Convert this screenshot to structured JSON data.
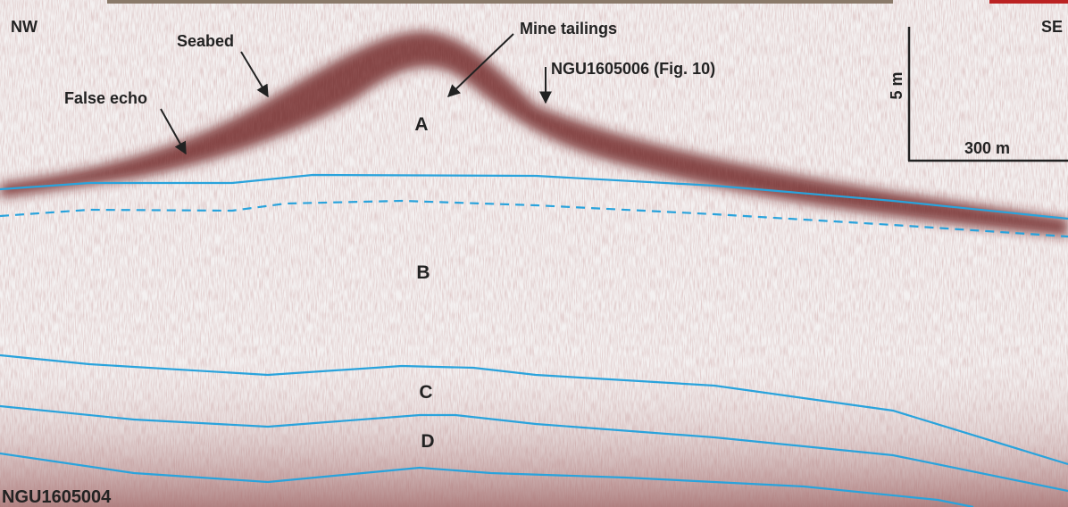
{
  "labels": {
    "nw": "NW",
    "se": "SE",
    "seabed": "Seabed",
    "false_echo": "False echo",
    "mine_tailings": "Mine tailings",
    "core": "NGU1605006 (Fig. 10)",
    "units": [
      "A",
      "B",
      "C",
      "D"
    ],
    "scale_vertical": "5 m",
    "scale_horizontal": "300 m",
    "profile": "NGU1605004"
  }
}
